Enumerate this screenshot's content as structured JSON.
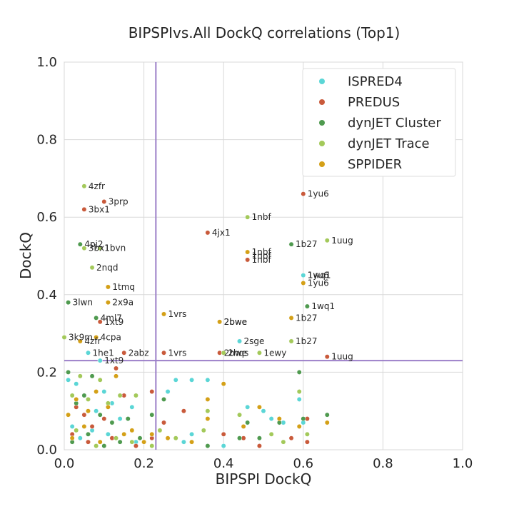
{
  "chart_data": {
    "type": "scatter",
    "title": "BIPSPIvs.All DockQ correlations (Top1)",
    "xlabel": "BIPSPI DockQ",
    "ylabel": "DockQ",
    "xlim": [
      0.0,
      1.0
    ],
    "ylim": [
      0.0,
      1.0
    ],
    "xticks": [
      "0.0",
      "0.2",
      "0.4",
      "0.6",
      "0.8",
      "1.0"
    ],
    "yticks": [
      "0.0",
      "0.2",
      "0.4",
      "0.6",
      "0.8",
      "1.0"
    ],
    "grid": true,
    "legend_position": "top-right",
    "threshold_lines": {
      "x": 0.23,
      "y": 0.23,
      "color": "#9b7fc8"
    },
    "series": [
      {
        "name": "ISPRED4",
        "color": "#5bd6d6",
        "points": [
          [
            0.01,
            0.18
          ],
          [
            0.03,
            0.17
          ],
          [
            0.05,
            0.14
          ],
          [
            0.08,
            0.1
          ],
          [
            0.1,
            0.15
          ],
          [
            0.12,
            0.12
          ],
          [
            0.14,
            0.08
          ],
          [
            0.17,
            0.11
          ],
          [
            0.26,
            0.15
          ],
          [
            0.28,
            0.18
          ],
          [
            0.32,
            0.18
          ],
          [
            0.36,
            0.18
          ],
          [
            0.46,
            0.11
          ],
          [
            0.5,
            0.1
          ],
          [
            0.52,
            0.08
          ],
          [
            0.55,
            0.07
          ],
          [
            0.59,
            0.13
          ],
          [
            0.6,
            0.07
          ],
          [
            0.06,
            0.25
          ],
          [
            0.09,
            0.23
          ],
          [
            0.44,
            0.28
          ],
          [
            0.6,
            0.45
          ],
          [
            0.02,
            0.06
          ],
          [
            0.04,
            0.03
          ],
          [
            0.07,
            0.05
          ],
          [
            0.11,
            0.04
          ],
          [
            0.18,
            0.02
          ],
          [
            0.32,
            0.04
          ],
          [
            0.4,
            0.01
          ],
          [
            0.3,
            0.02
          ]
        ],
        "labels": [
          [
            "2sge",
            0.44,
            0.28
          ],
          [
            "1he1",
            0.06,
            0.25
          ],
          [
            "1xt9",
            0.09,
            0.23
          ],
          [
            "1wq1",
            0.6,
            0.45
          ]
        ]
      },
      {
        "name": "PREDUS",
        "color": "#c95a3b",
        "points": [
          [
            0.03,
            0.11
          ],
          [
            0.05,
            0.09
          ],
          [
            0.07,
            0.06
          ],
          [
            0.1,
            0.08
          ],
          [
            0.13,
            0.21
          ],
          [
            0.15,
            0.14
          ],
          [
            0.22,
            0.15
          ],
          [
            0.25,
            0.07
          ],
          [
            0.3,
            0.1
          ],
          [
            0.4,
            0.04
          ],
          [
            0.45,
            0.03
          ],
          [
            0.49,
            0.01
          ],
          [
            0.57,
            0.03
          ],
          [
            0.61,
            0.08
          ],
          [
            0.61,
            0.02
          ],
          [
            0.05,
            0.62
          ],
          [
            0.1,
            0.64
          ],
          [
            0.36,
            0.56
          ],
          [
            0.6,
            0.66
          ],
          [
            0.09,
            0.33
          ],
          [
            0.15,
            0.25
          ],
          [
            0.25,
            0.25
          ],
          [
            0.39,
            0.25
          ],
          [
            0.46,
            0.49
          ],
          [
            0.66,
            0.24
          ],
          [
            0.02,
            0.04
          ],
          [
            0.06,
            0.02
          ],
          [
            0.12,
            0.03
          ],
          [
            0.18,
            0.01
          ],
          [
            0.22,
            0.03
          ]
        ],
        "labels": [
          [
            "3bx1",
            0.05,
            0.62
          ],
          [
            "3prp",
            0.1,
            0.64
          ],
          [
            "4jx1",
            0.36,
            0.56
          ],
          [
            "1yu6",
            0.6,
            0.66
          ],
          [
            "1xt9",
            0.09,
            0.33
          ],
          [
            "2abz",
            0.15,
            0.25
          ],
          [
            "1vrs",
            0.25,
            0.25
          ],
          [
            "2bwe",
            0.39,
            0.25
          ],
          [
            "1nbf",
            0.46,
            0.49
          ],
          [
            "1uug",
            0.66,
            0.24
          ]
        ]
      },
      {
        "name": "dynJET Cluster",
        "color": "#4f9a4f",
        "points": [
          [
            0.01,
            0.2
          ],
          [
            0.03,
            0.12
          ],
          [
            0.05,
            0.14
          ],
          [
            0.07,
            0.19
          ],
          [
            0.09,
            0.09
          ],
          [
            0.12,
            0.07
          ],
          [
            0.16,
            0.08
          ],
          [
            0.22,
            0.09
          ],
          [
            0.25,
            0.13
          ],
          [
            0.28,
            0.03
          ],
          [
            0.36,
            0.01
          ],
          [
            0.44,
            0.03
          ],
          [
            0.46,
            0.07
          ],
          [
            0.49,
            0.03
          ],
          [
            0.54,
            0.07
          ],
          [
            0.59,
            0.2
          ],
          [
            0.6,
            0.08
          ],
          [
            0.66,
            0.09
          ],
          [
            0.04,
            0.53
          ],
          [
            0.01,
            0.38
          ],
          [
            0.08,
            0.34
          ],
          [
            0.57,
            0.53
          ],
          [
            0.61,
            0.37
          ],
          [
            0.02,
            0.02
          ],
          [
            0.06,
            0.04
          ],
          [
            0.1,
            0.01
          ],
          [
            0.14,
            0.02
          ],
          [
            0.19,
            0.03
          ]
        ],
        "labels": [
          [
            "4pj2",
            0.04,
            0.53
          ],
          [
            "3lwn",
            0.01,
            0.38
          ],
          [
            "4ml7",
            0.08,
            0.34
          ],
          [
            "1b27",
            0.57,
            0.53
          ],
          [
            "1wq1",
            0.61,
            0.37
          ]
        ]
      },
      {
        "name": "dynJET Trace",
        "color": "#a3c95a",
        "points": [
          [
            0.02,
            0.14
          ],
          [
            0.04,
            0.19
          ],
          [
            0.06,
            0.13
          ],
          [
            0.09,
            0.18
          ],
          [
            0.11,
            0.12
          ],
          [
            0.14,
            0.14
          ],
          [
            0.18,
            0.14
          ],
          [
            0.24,
            0.05
          ],
          [
            0.28,
            0.03
          ],
          [
            0.35,
            0.05
          ],
          [
            0.36,
            0.1
          ],
          [
            0.44,
            0.09
          ],
          [
            0.52,
            0.04
          ],
          [
            0.55,
            0.02
          ],
          [
            0.59,
            0.15
          ],
          [
            0.61,
            0.04
          ],
          [
            0.05,
            0.68
          ],
          [
            0.05,
            0.52
          ],
          [
            0.07,
            0.47
          ],
          [
            0.09,
            0.52
          ],
          [
            0.46,
            0.6
          ],
          [
            0.66,
            0.54
          ],
          [
            0.0,
            0.29
          ],
          [
            0.4,
            0.25
          ],
          [
            0.49,
            0.25
          ],
          [
            0.57,
            0.28
          ],
          [
            0.03,
            0.05
          ],
          [
            0.08,
            0.01
          ],
          [
            0.13,
            0.03
          ],
          [
            0.17,
            0.02
          ],
          [
            0.22,
            0.01
          ]
        ],
        "labels": [
          [
            "4zfr",
            0.05,
            0.68
          ],
          [
            "3bx1",
            0.05,
            0.52
          ],
          [
            "1bvn",
            0.09,
            0.52
          ],
          [
            "2nqd",
            0.07,
            0.47
          ],
          [
            "1nbf",
            0.46,
            0.6
          ],
          [
            "1uug",
            0.66,
            0.54
          ],
          [
            "3k9m",
            0.0,
            0.29
          ],
          [
            "2hqs",
            0.4,
            0.25
          ],
          [
            "1ewy",
            0.49,
            0.25
          ],
          [
            "1b27",
            0.57,
            0.28
          ]
        ]
      },
      {
        "name": "SPPIDER",
        "color": "#d4a017",
        "points": [
          [
            0.01,
            0.09
          ],
          [
            0.03,
            0.13
          ],
          [
            0.06,
            0.1
          ],
          [
            0.08,
            0.15
          ],
          [
            0.11,
            0.11
          ],
          [
            0.13,
            0.19
          ],
          [
            0.17,
            0.05
          ],
          [
            0.22,
            0.04
          ],
          [
            0.26,
            0.03
          ],
          [
            0.32,
            0.02
          ],
          [
            0.36,
            0.13
          ],
          [
            0.36,
            0.08
          ],
          [
            0.4,
            0.17
          ],
          [
            0.45,
            0.06
          ],
          [
            0.49,
            0.11
          ],
          [
            0.54,
            0.08
          ],
          [
            0.59,
            0.06
          ],
          [
            0.66,
            0.07
          ],
          [
            0.46,
            0.51
          ],
          [
            0.11,
            0.42
          ],
          [
            0.11,
            0.38
          ],
          [
            0.25,
            0.35
          ],
          [
            0.04,
            0.28
          ],
          [
            0.08,
            0.29
          ],
          [
            0.39,
            0.33
          ],
          [
            0.57,
            0.34
          ],
          [
            0.6,
            0.43
          ],
          [
            0.02,
            0.03
          ],
          [
            0.05,
            0.06
          ],
          [
            0.09,
            0.02
          ],
          [
            0.15,
            0.04
          ],
          [
            0.2,
            0.02
          ]
        ],
        "labels": [
          [
            "1nbf",
            0.46,
            0.51
          ],
          [
            "1tmq",
            0.11,
            0.42
          ],
          [
            "2x9a",
            0.11,
            0.38
          ],
          [
            "1vrs",
            0.25,
            0.35
          ],
          [
            "4zfr",
            0.04,
            0.28
          ],
          [
            "4cpa",
            0.08,
            0.29
          ],
          [
            "2bwe",
            0.39,
            0.33
          ],
          [
            "1b27",
            0.57,
            0.34
          ],
          [
            "1yu6",
            0.6,
            0.43
          ]
        ]
      }
    ],
    "extra_labels": [
      [
        "2bwe",
        0.39,
        0.33
      ],
      [
        "1nbf",
        0.46,
        0.5
      ],
      [
        "1yu6",
        0.6,
        0.45
      ]
    ]
  }
}
